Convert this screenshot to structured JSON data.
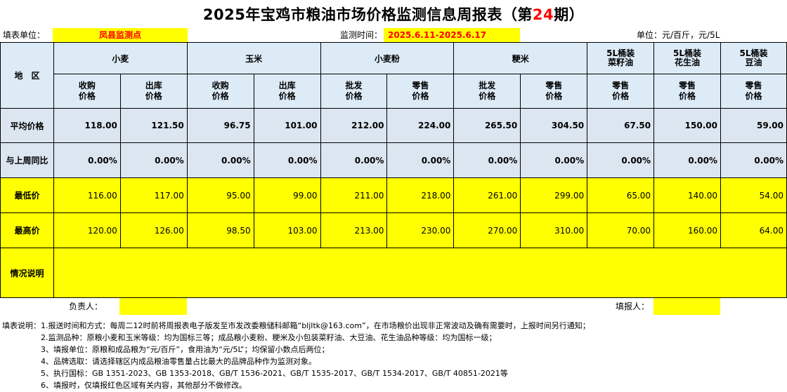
{
  "title": {
    "prefix": "2025年宝鸡市粮油市场价格监测信息周报表（第",
    "issue": "24",
    "suffix": "期）"
  },
  "info": {
    "unit_label": "填表单位：",
    "unit_value": "凤县监测点",
    "time_label": "监测时间：",
    "time_value": "2025.6.11-2025.6.17",
    "units": "单位：元/百斤，元/5L"
  },
  "headers": {
    "region": "地　区",
    "wheat": "小麦",
    "corn": "玉米",
    "flour": "小麦粉",
    "rice": "粳米",
    "rapeseed_line1": "5L桶装",
    "rapeseed_line2": "菜籽油",
    "peanut_line1": "5L桶装",
    "peanut_line2": "花生油",
    "soy_line1": "5L桶装",
    "soy_line2": "豆油",
    "sub": [
      {
        "l1": "收购",
        "l2": "价格"
      },
      {
        "l1": "出库",
        "l2": "价格"
      },
      {
        "l1": "收购",
        "l2": "价格"
      },
      {
        "l1": "出库",
        "l2": "价格"
      },
      {
        "l1": "批发",
        "l2": "价格"
      },
      {
        "l1": "零售",
        "l2": "价格"
      },
      {
        "l1": "批发",
        "l2": "价格"
      },
      {
        "l1": "零售",
        "l2": "价格"
      },
      {
        "l1": "零售",
        "l2": "价格"
      },
      {
        "l1": "零售",
        "l2": "价格"
      },
      {
        "l1": "零售",
        "l2": "价格"
      }
    ]
  },
  "rows": {
    "avg": {
      "label": "平均价格",
      "values": [
        "118.00",
        "121.50",
        "96.75",
        "101.00",
        "212.00",
        "224.00",
        "265.50",
        "304.50",
        "67.50",
        "150.00",
        "59.00"
      ]
    },
    "yoy": {
      "label": "与上周同比",
      "values": [
        "0.00%",
        "0.00%",
        "0.00%",
        "0.00%",
        "0.00%",
        "0.00%",
        "0.00%",
        "0.00%",
        "0.00%",
        "0.00%",
        "0.00%"
      ]
    },
    "min": {
      "label": "最低价",
      "values": [
        "116.00",
        "117.00",
        "95.00",
        "99.00",
        "211.00",
        "218.00",
        "261.00",
        "299.00",
        "65.00",
        "140.00",
        "54.00"
      ]
    },
    "max": {
      "label": "最高价",
      "values": [
        "120.00",
        "126.00",
        "98.50",
        "103.00",
        "213.00",
        "230.00",
        "270.00",
        "310.00",
        "70.00",
        "160.00",
        "64.00"
      ]
    },
    "remark": {
      "label": "情况说明"
    }
  },
  "footer": {
    "responsible": "负责人：",
    "filler": "填报人："
  },
  "notes": [
    "填表说明：1.报送时间和方式：每周二12时前将周报表电子版发至市发改委粮储科邮箱“bljltk@163.com”，在市场粮价出现非正常波动及确有需要时，上报时间另行通知；",
    "　　　　　2.监测品种：原粮小麦和玉米等级：均为国标三等；成品粮小麦粉、粳米及小包装菜籽油、大豆油、花生油品种等级：均为国标一级；",
    "　　　　　3、填报单位：原粮和成品粮为“元/百斤”，食用油为“元/5L”；均保留小数点后两位；",
    "　　　　　4、品牌选取：请选择辖区内成品粮油零售量占比最大的品牌品种作为监测对象。",
    "　　　　　5、执行国标：GB 1351-2023、GB 1353-2018、GB/T 1536-2021、GB/T 1535-2017、GB/T 1534-2017、GB/T 40851-2021等",
    "　　　　　6、填报时，仅填报红色区域有关内容，其他部分不做修改。"
  ]
}
